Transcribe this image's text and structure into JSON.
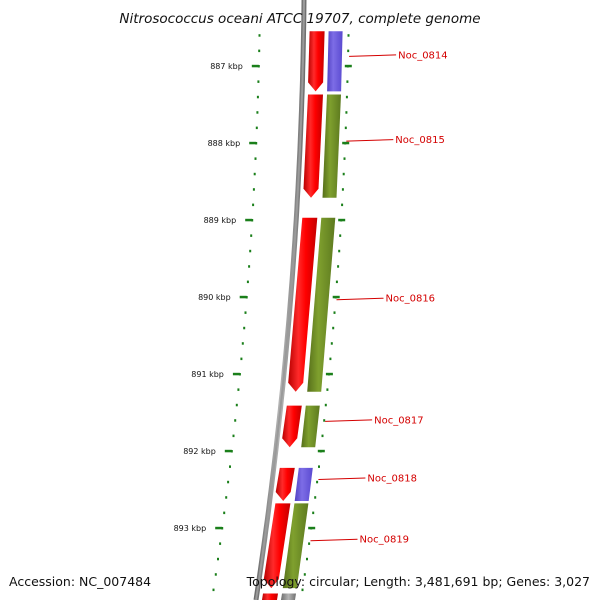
{
  "title": "Nitrosococcus oceani ATCC 19707, complete genome",
  "footer": {
    "accession": "Accession: NC_007484",
    "summary": "Topology: circular; Length: 3,481,691 bp; Genes: 3,027"
  },
  "colors": {
    "forward_strand": "#e60000",
    "backbone": "#8a8a8a",
    "tick": "#1a7f1a",
    "gene_green": "#6b8c22",
    "gene_blue": "#6a58d4",
    "label": "#d40000"
  },
  "ticks": [
    {
      "kbp": 887,
      "label": "887 kbp"
    },
    {
      "kbp": 888,
      "label": "888 kbp"
    },
    {
      "kbp": 889,
      "label": "889 kbp"
    },
    {
      "kbp": 890,
      "label": "890 kbp"
    },
    {
      "kbp": 891,
      "label": "891 kbp"
    },
    {
      "kbp": 892,
      "label": "892 kbp"
    },
    {
      "kbp": 893,
      "label": "893 kbp"
    }
  ],
  "genes": [
    {
      "name": "Noc_0814",
      "start_kbp": 886.55,
      "end_kbp": 887.33,
      "color": "blue"
    },
    {
      "name": "Noc_0815",
      "start_kbp": 887.37,
      "end_kbp": 888.71,
      "color": "green"
    },
    {
      "name": "Noc_0816",
      "start_kbp": 888.97,
      "end_kbp": 891.23,
      "color": "green"
    },
    {
      "name": "Noc_0817",
      "start_kbp": 891.41,
      "end_kbp": 891.95,
      "color": "green"
    },
    {
      "name": "Noc_0818",
      "start_kbp": 892.22,
      "end_kbp": 892.65,
      "color": "blue"
    },
    {
      "name": "Noc_0819",
      "start_kbp": 892.68,
      "end_kbp": 893.78,
      "color": "green"
    }
  ]
}
